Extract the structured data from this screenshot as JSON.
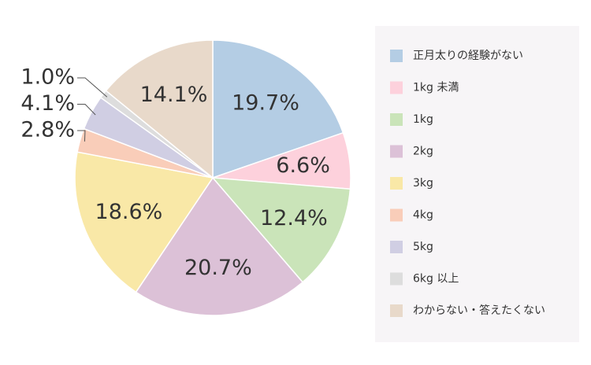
{
  "chart_data": {
    "type": "pie",
    "categories": [
      "正月太りの経験がない",
      "1kg 未満",
      "1kg",
      "2kg",
      "3kg",
      "4kg",
      "5kg",
      "6kg 以上",
      "わからない・答えたくない"
    ],
    "values": [
      19.7,
      6.6,
      12.4,
      20.7,
      18.6,
      2.8,
      4.1,
      1.0,
      14.1
    ],
    "value_labels": [
      "19.7%",
      "6.6%",
      "12.4%",
      "20.7%",
      "18.6%",
      "2.8%",
      "4.1%",
      "1.0%",
      "14.1%"
    ],
    "colors": [
      "#b4cde4",
      "#fdd1dc",
      "#cae4b9",
      "#dcc1d7",
      "#f9e8a7",
      "#f9cdb9",
      "#d0cee3",
      "#dddddd",
      "#e8d9ca"
    ],
    "legend": "right"
  }
}
